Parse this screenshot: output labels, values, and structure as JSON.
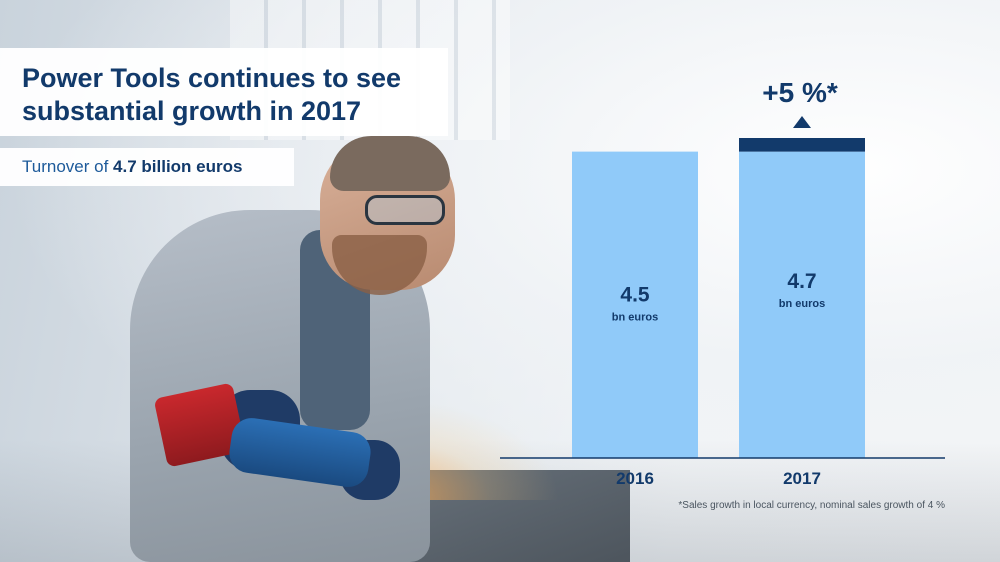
{
  "slide": {
    "title_line1": "Power Tools continues to see",
    "title_line2": "substantial growth in 2017",
    "subtitle_prefix": "Turnover of ",
    "subtitle_highlight": "4.7 billion euros",
    "footnote": "*Sales growth in local currency, nominal sales growth of 4 %"
  },
  "colors": {
    "bar": "#90caf9",
    "increment": "#123a6b",
    "text_dark": "#123a6b",
    "axis": "#123a6b"
  },
  "chart_data": {
    "type": "bar",
    "categories": [
      "2016",
      "2017"
    ],
    "values": [
      4.5,
      4.7
    ],
    "value_labels": [
      "4.5",
      "4.7"
    ],
    "unit_label": "bn euros",
    "ylim": [
      0,
      4.7
    ],
    "growth_annotation": "+5 %*",
    "grid": false
  }
}
